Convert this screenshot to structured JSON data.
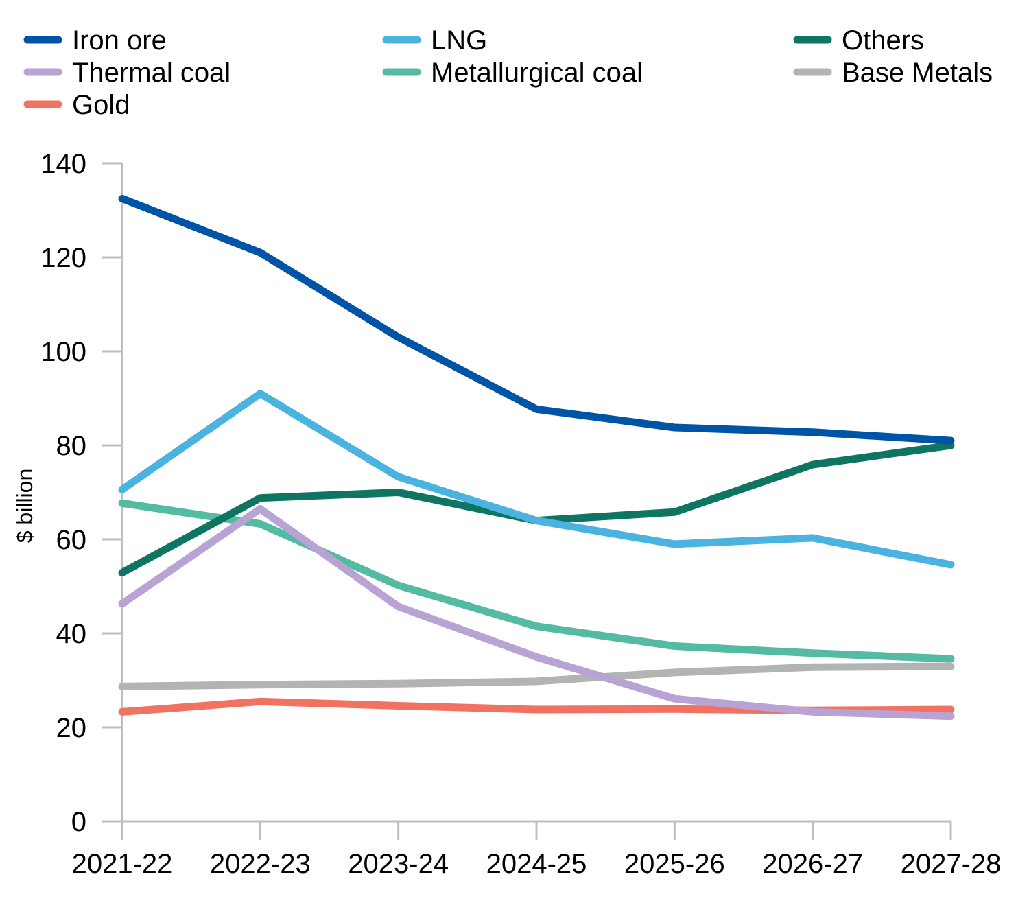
{
  "chart_data": {
    "type": "line",
    "title": "",
    "xlabel": "",
    "ylabel": "$ billion",
    "ylim": [
      0,
      140
    ],
    "yticks": [
      0,
      20,
      40,
      60,
      80,
      100,
      120,
      140
    ],
    "grid": false,
    "legend_position": "top",
    "categories": [
      "2021-22",
      "2022-23",
      "2023-24",
      "2024-25",
      "2025-26",
      "2026-27",
      "2027-28"
    ],
    "series": [
      {
        "name": "Iron ore",
        "color": "#0054a6",
        "values": [
          132.5,
          121,
          103,
          87.7,
          83.8,
          82.8,
          81
        ]
      },
      {
        "name": "LNG",
        "color": "#4ab3e0",
        "values": [
          70.6,
          91,
          73.3,
          64,
          59,
          60.3,
          54.6
        ]
      },
      {
        "name": "Others",
        "color": "#0f7563",
        "values": [
          52.9,
          68.8,
          70,
          64,
          65.8,
          75.9,
          80
        ]
      },
      {
        "name": "Thermal coal",
        "color": "#b8a3d4",
        "values": [
          46.3,
          66.5,
          45.7,
          35,
          26.1,
          23.3,
          22.4
        ]
      },
      {
        "name": "Metallurgical coal",
        "color": "#52bba1",
        "values": [
          67.7,
          63.3,
          50.2,
          41.5,
          37.3,
          35.8,
          34.6
        ]
      },
      {
        "name": "Base Metals",
        "color": "#b1b4b3",
        "values": [
          28.7,
          29.1,
          29.3,
          29.8,
          31.7,
          32.8,
          33
        ]
      },
      {
        "name": "Gold",
        "color": "#f17260",
        "values": [
          23.3,
          25.5,
          24.6,
          23.8,
          23.9,
          23.6,
          23.8
        ]
      }
    ]
  }
}
